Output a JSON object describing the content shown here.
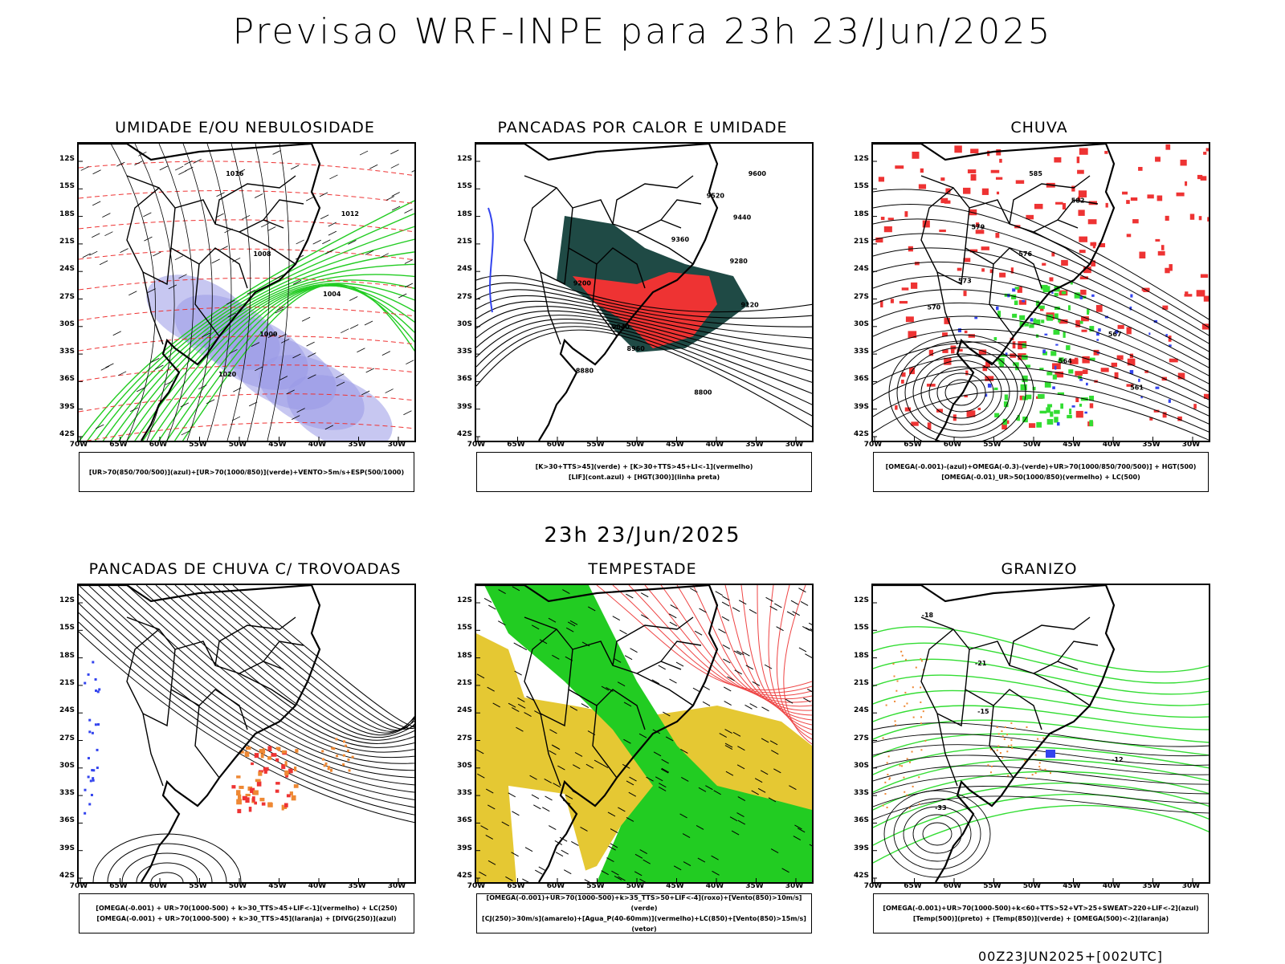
{
  "header": {
    "title": "Previsao WRF-INPE  para 23h 23/Jun/2025",
    "subtitle": "23h 23/Jun/2025",
    "footer": "00Z23JUN2025+[002UTC]"
  },
  "axes": {
    "lat_labels": [
      "12S",
      "15S",
      "18S",
      "21S",
      "24S",
      "27S",
      "30S",
      "33S",
      "36S",
      "39S",
      "42S"
    ],
    "lon_labels": [
      "70W",
      "65W",
      "60W",
      "55W",
      "50W",
      "45W",
      "40W",
      "35W",
      "30W"
    ]
  },
  "colors": {
    "blue": "#9999e6",
    "green": "#22cc22",
    "red": "#ee3333",
    "dark": "#1f4a45",
    "yellow": "#e5c833",
    "orange": "#ee8833",
    "bright_green": "#33dd33"
  },
  "panels": [
    {
      "id": "umidade",
      "title": "UMIDADE E/OU NEBULOSIDADE",
      "legend": [
        "[UR>70(850/700/500)](azul)+[UR>70(1000/850)](verde)+VENTO>5m/s+ESP(500/1000)"
      ]
    },
    {
      "id": "pancadas-calor",
      "title": "PANCADAS POR CALOR E UMIDADE",
      "legend": [
        "[K>30+TTS>45](verde) + [K>30+TTS>45+LI<-1](vermelho)",
        "[LIF](cont.azul) + [HGT(300)](linha preta)"
      ]
    },
    {
      "id": "chuva",
      "title": "CHUVA",
      "legend": [
        "[OMEGA(-0.001)-(azul)+OMEGA(-0.3)-(verde)+UR>70(1000/850/700/500)] + HGT(500)",
        "[OMEGA(-0.01)_UR>50(1000/850)(vermelho) + LC(500)"
      ]
    },
    {
      "id": "trovoadas",
      "title": "PANCADAS DE CHUVA C/ TROVOADAS",
      "legend": [
        "[OMEGA(-0.001) + UR>70(1000-500) + k>30_TTS>45+LIF<-1](vermelho) + LC(250)",
        "[OMEGA(-0.001) + UR>70(1000-500) + k>30_TTS>45](laranja) + [DIVG(250)](azul)"
      ]
    },
    {
      "id": "tempestade",
      "title": "TEMPESTADE",
      "legend": [
        "[OMEGA(-0.001)+UR>70(1000-500)+k>35_TTS>50+LIF<-4](roxo)+[Vento(850)>10m/s](verde)",
        "[CJ(250)>30m/s](amarelo)+[Agua_P(40-60mm)](vermelho)+LC(850)+[Vento(850)>15m/s](vetor)"
      ]
    },
    {
      "id": "granizo",
      "title": "GRANIZO",
      "legend": [
        "[OMEGA(-0.001)+UR>70(1000-500)+k<60+TTS>52+VT>25+SWEAT>220+LIF<-2](azul)",
        "[Temp(500)](preto) + [Temp(850)](verde) + [OMEGA(500)<-2](laranja)"
      ]
    }
  ],
  "contour_labels": {
    "umidade": [
      "1016",
      "1012",
      "1008",
      "1004",
      "1000",
      "1020"
    ],
    "pancadas-calor": [
      "9600",
      "9520",
      "9440",
      "9360",
      "9280",
      "9200",
      "9120",
      "9040",
      "8960",
      "8880",
      "8800"
    ],
    "chuva": [
      "585",
      "582",
      "579",
      "576",
      "573",
      "570",
      "567",
      "564",
      "561"
    ],
    "granizo": [
      "-18",
      "-21",
      "-15",
      "-12",
      "-33"
    ]
  }
}
